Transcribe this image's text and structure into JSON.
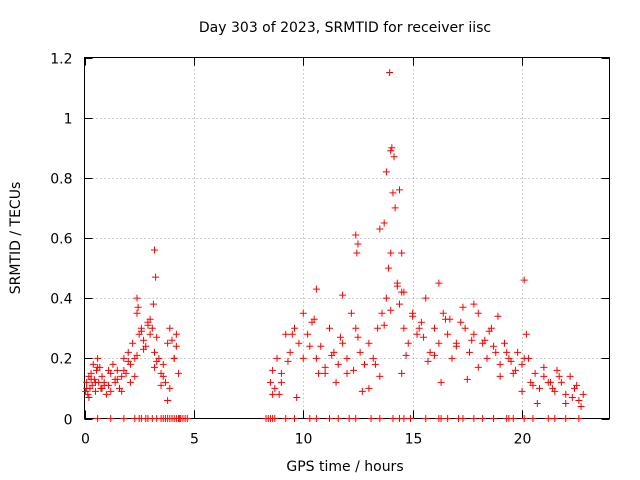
{
  "chart_data": {
    "type": "scatter",
    "title": "Day 303 of 2023, SRMTID for receiver iisc",
    "xlabel": "GPS time / hours",
    "ylabel": "SRMTID / TECUs",
    "xlim": [
      0,
      24
    ],
    "ylim": [
      0,
      1.2
    ],
    "xticks": [
      0,
      5,
      10,
      15,
      20
    ],
    "xtick_labels": [
      "0",
      "5",
      "10",
      "15",
      "20"
    ],
    "yticks": [
      0,
      0.2,
      0.4,
      0.6,
      0.8,
      1,
      1.2
    ],
    "ytick_labels": [
      "0",
      "0.2",
      "0.4",
      "0.6",
      "0.8",
      "1",
      "1.2"
    ],
    "grid": true,
    "marker": "+",
    "marker_color": "#ff0000",
    "series": [
      {
        "name": "SRMTID",
        "x": [
          0.05,
          0.1,
          0.15,
          0.2,
          0.25,
          0.3,
          0.35,
          0.4,
          0.45,
          0.5,
          0.55,
          0.6,
          0.65,
          0.7,
          0.75,
          0.8,
          0.9,
          1.0,
          1.1,
          1.2,
          1.3,
          1.4,
          1.5,
          1.6,
          1.7,
          1.8,
          1.9,
          2.0,
          2.1,
          2.2,
          2.3,
          2.4,
          2.5,
          2.6,
          2.7,
          2.8,
          2.9,
          3.0,
          3.1,
          3.15,
          3.2,
          3.3,
          3.4,
          3.5,
          3.6,
          3.7,
          3.8,
          3.9,
          4.0,
          4.1,
          4.2,
          4.3,
          0.1,
          0.3,
          0.6,
          0.9,
          1.2,
          1.5,
          1.8,
          2.1,
          2.4,
          2.7,
          3.0,
          3.3,
          3.6,
          3.9,
          4.2,
          0.2,
          0.5,
          0.8,
          1.1,
          1.4,
          1.7,
          2.0,
          2.3,
          2.6,
          2.9,
          3.2,
          3.5,
          3.8,
          4.1,
          8.5,
          8.6,
          8.7,
          8.8,
          8.9,
          9.0,
          9.2,
          9.4,
          9.6,
          9.8,
          10.0,
          10.2,
          10.4,
          10.6,
          10.8,
          11.0,
          11.2,
          11.4,
          11.6,
          11.8,
          12.0,
          12.2,
          12.4,
          12.5,
          12.6,
          12.8,
          13.0,
          13.2,
          13.4,
          13.6,
          13.8,
          13.9,
          14.0,
          14.05,
          14.1,
          14.2,
          14.3,
          14.4,
          14.5,
          14.6,
          14.8,
          15.0,
          15.2,
          15.4,
          15.6,
          15.8,
          16.0,
          16.2,
          16.4,
          16.6,
          16.8,
          17.0,
          17.2,
          17.4,
          17.6,
          17.8,
          18.0,
          18.2,
          18.4,
          18.6,
          18.8,
          19.0,
          19.2,
          19.4,
          19.6,
          19.8,
          20.0,
          20.1,
          20.2,
          20.4,
          20.6,
          20.8,
          21.0,
          21.2,
          21.4,
          21.6,
          21.8,
          22.0,
          22.2,
          22.4,
          22.6,
          22.8,
          8.6,
          9.0,
          9.5,
          10.0,
          10.5,
          11.0,
          11.5,
          12.0,
          12.5,
          13.0,
          13.5,
          14.0,
          14.5,
          15.0,
          15.5,
          16.0,
          16.5,
          17.0,
          17.5,
          18.0,
          18.5,
          19.0,
          19.5,
          20.0,
          20.5,
          21.0,
          21.5,
          22.0,
          22.5,
          9.3,
          10.3,
          11.3,
          12.3,
          13.3,
          14.3,
          15.3,
          16.3,
          17.3,
          18.3,
          19.3,
          20.3,
          21.3,
          22.3,
          9.7,
          10.7,
          11.7,
          12.7,
          13.7,
          14.7,
          15.7,
          16.7,
          17.7,
          18.7,
          19.7,
          20.7,
          21.7,
          22.7,
          12.4,
          12.45,
          13.5,
          13.7,
          13.8,
          13.95,
          14.0,
          14.15,
          14.4,
          14.5,
          14.6,
          3.2,
          3.25,
          2.4,
          2.45,
          20.1,
          10.6,
          11.8,
          16.2,
          17.8,
          18.9
        ],
        "y": [
          0.09,
          0.12,
          0.08,
          0.14,
          0.1,
          0.15,
          0.11,
          0.18,
          0.13,
          0.09,
          0.16,
          0.2,
          0.12,
          0.17,
          0.1,
          0.14,
          0.12,
          0.08,
          0.11,
          0.15,
          0.18,
          0.12,
          0.16,
          0.1,
          0.14,
          0.2,
          0.15,
          0.22,
          0.18,
          0.25,
          0.2,
          0.35,
          0.28,
          0.3,
          0.26,
          0.24,
          0.32,
          0.28,
          0.3,
          0.38,
          0.22,
          0.27,
          0.2,
          0.15,
          0.18,
          0.12,
          0.25,
          0.3,
          0.26,
          0.2,
          0.28,
          0.15,
          0.1,
          0.13,
          0.17,
          0.11,
          0.09,
          0.13,
          0.16,
          0.12,
          0.21,
          0.23,
          0.33,
          0.19,
          0.14,
          0.1,
          0.24,
          0.07,
          0.12,
          0.1,
          0.16,
          0.13,
          0.09,
          0.19,
          0.14,
          0.29,
          0.31,
          0.17,
          0.11,
          0.06,
          0.2,
          0.12,
          0.16,
          0.1,
          0.2,
          0.08,
          0.15,
          0.28,
          0.22,
          0.3,
          0.25,
          0.35,
          0.28,
          0.32,
          0.2,
          0.24,
          0.15,
          0.3,
          0.22,
          0.18,
          0.25,
          0.2,
          0.35,
          0.3,
          0.58,
          0.22,
          0.18,
          0.25,
          0.2,
          0.3,
          0.35,
          0.4,
          0.5,
          0.55,
          0.9,
          0.75,
          0.7,
          0.45,
          0.38,
          0.42,
          0.3,
          0.25,
          0.35,
          0.28,
          0.32,
          0.4,
          0.22,
          0.3,
          0.25,
          0.35,
          0.28,
          0.2,
          0.25,
          0.32,
          0.3,
          0.22,
          0.28,
          0.35,
          0.25,
          0.2,
          0.3,
          0.22,
          0.18,
          0.25,
          0.2,
          0.15,
          0.22,
          0.18,
          0.46,
          0.28,
          0.12,
          0.15,
          0.1,
          0.14,
          0.12,
          0.1,
          0.16,
          0.12,
          0.08,
          0.14,
          0.1,
          0.06,
          0.08,
          0.08,
          0.12,
          0.28,
          0.2,
          0.33,
          0.17,
          0.12,
          0.15,
          0.27,
          0.1,
          0.14,
          0.36,
          0.15,
          0.34,
          0.27,
          0.21,
          0.33,
          0.24,
          0.13,
          0.17,
          0.29,
          0.14,
          0.19,
          0.09,
          0.11,
          0.17,
          0.09,
          0.05,
          0.11,
          0.19,
          0.24,
          0.21,
          0.16,
          0.18,
          0.44,
          0.3,
          0.12,
          0.37,
          0.26,
          0.22,
          0.2,
          0.12,
          0.07,
          0.07,
          0.15,
          0.27,
          0.09,
          0.31,
          0.21,
          0.19,
          0.33,
          0.26,
          0.24,
          0.16,
          0.05,
          0.14,
          0.04,
          0.61,
          0.55,
          0.63,
          0.65,
          0.82,
          1.15,
          0.89,
          0.87,
          0.76,
          0.55,
          0.42,
          0.56,
          0.47,
          0.4,
          0.37,
          0.2,
          0.43,
          0.41,
          0.45,
          0.38,
          0.34
        ],
        "zeros_x": [
          0.6,
          1.2,
          1.8,
          2.3,
          2.5,
          2.6,
          2.8,
          2.9,
          3.1,
          3.3,
          3.5,
          3.6,
          3.7,
          3.8,
          3.9,
          4.0,
          4.1,
          4.2,
          4.3,
          4.35,
          4.4,
          4.5,
          4.6,
          4.7,
          8.3,
          8.4,
          8.5,
          8.6,
          8.7,
          9.2,
          9.6,
          10.3,
          10.6,
          11.2,
          11.6,
          12.1,
          12.4,
          13.1,
          13.5,
          14.1,
          14.4,
          14.6,
          14.9,
          15.6,
          16.2,
          16.3,
          16.6,
          17.1,
          17.3,
          17.8,
          18.2,
          18.7,
          19.3,
          19.4,
          19.6,
          20.1,
          20.5,
          21.2,
          21.5,
          22.0,
          22.6
        ]
      }
    ]
  }
}
